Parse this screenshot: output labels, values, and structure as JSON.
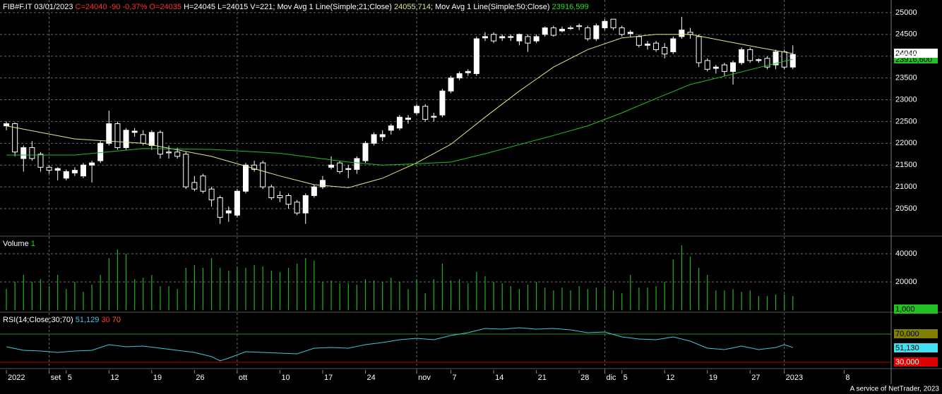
{
  "header": {
    "symbol": "FIB#F.IT 03/01/2023",
    "quote": "C=24040 -90 -0,37% O=24035",
    "stats": "H=24045 L=24015 V=221; Mov Avg 1 Line(Simple;21;Close)",
    "ma21_value": "24055,714",
    "ma50_name": "; Mov Avg 1 Line(Simple;50;Close)",
    "ma50_value": "23916,599",
    "volume_name": "Volume",
    "volume_period": "1",
    "rsi_name": "RSI(14;Close;30;70)",
    "rsi_value": "51,129",
    "rsi_low": "30",
    "rsi_high": "70"
  },
  "badges": {
    "last_price": "24040",
    "ma50": "23916,600",
    "volume": "1,000",
    "rsi": "51,130"
  },
  "footer": "A service of NetTrader, 2023",
  "chart_data": [
    {
      "type": "candlestick",
      "categories": [
        "2022",
        null,
        null,
        null,
        null,
        "set",
        null,
        "5",
        null,
        null,
        null,
        null,
        "12",
        null,
        null,
        null,
        null,
        "19",
        null,
        null,
        null,
        null,
        "26",
        null,
        null,
        null,
        null,
        "ott",
        null,
        null,
        null,
        null,
        "10",
        null,
        null,
        null,
        null,
        "17",
        null,
        null,
        null,
        null,
        "24",
        null,
        null,
        null,
        null,
        null,
        "nov",
        null,
        null,
        null,
        "7",
        null,
        null,
        null,
        null,
        "14",
        null,
        null,
        null,
        null,
        "21",
        null,
        null,
        null,
        null,
        "28",
        null,
        null,
        "dic",
        null,
        "5",
        null,
        null,
        null,
        null,
        "12",
        null,
        null,
        null,
        null,
        "19",
        null,
        null,
        null,
        null,
        "27",
        null,
        null,
        null,
        "2023",
        null,
        null,
        null,
        null,
        null,
        null,
        "8",
        null,
        null,
        null,
        null,
        null
      ],
      "month_starts": [
        5,
        27,
        48,
        70,
        91
      ],
      "open": [
        22400,
        22450,
        21650,
        21900,
        21750,
        21450,
        21380,
        21200,
        21320,
        21250,
        21500,
        21600,
        22000,
        22450,
        21900,
        22250,
        22200,
        21950,
        22250,
        21800,
        21800,
        21750,
        21100,
        21250,
        20950,
        20750,
        20400,
        20350,
        20900,
        21500,
        21550,
        21000,
        20800,
        20800,
        20650,
        20400,
        20800,
        21000,
        21450,
        21550,
        21400,
        21400,
        21600,
        22000,
        22150,
        22300,
        22350,
        22550,
        22700,
        22850,
        22600,
        22650,
        23200,
        23500,
        23620,
        23600,
        24420,
        24500,
        24420,
        24430,
        24350,
        24450,
        24350,
        24500,
        24650,
        24580,
        24650,
        24700,
        24650,
        24400,
        24650,
        24850,
        24650,
        24520,
        24450,
        24250,
        24300,
        24200,
        24100,
        24450,
        24550,
        24450,
        23900,
        23720,
        23800,
        23650,
        23850,
        24150,
        23900,
        23950,
        23800,
        24100,
        23750,
        null,
        null,
        null,
        null,
        null,
        null,
        null,
        null,
        null,
        null,
        null
      ],
      "high": [
        22500,
        22480,
        21950,
        22050,
        21800,
        21500,
        21450,
        21400,
        21450,
        21550,
        21600,
        22050,
        22750,
        22500,
        22350,
        22350,
        22300,
        22300,
        22300,
        21950,
        21900,
        21800,
        21250,
        21300,
        21000,
        20800,
        20550,
        20950,
        21550,
        21600,
        21600,
        21050,
        20900,
        20850,
        20700,
        20850,
        21050,
        21250,
        21700,
        21600,
        21500,
        21700,
        22050,
        22250,
        22300,
        22450,
        22650,
        22650,
        22900,
        22900,
        22700,
        23250,
        23550,
        23650,
        23700,
        24450,
        24550,
        24550,
        24500,
        24500,
        24520,
        24500,
        24500,
        24680,
        24700,
        24680,
        24700,
        24750,
        24700,
        24750,
        24850,
        24850,
        24700,
        24600,
        24500,
        24350,
        24350,
        24300,
        24450,
        24900,
        24650,
        24500,
        23950,
        23800,
        23850,
        23900,
        24200,
        24200,
        23950,
        24000,
        24150,
        24150,
        24250,
        null,
        null,
        null,
        null,
        null,
        null,
        null,
        null,
        null,
        null,
        null
      ],
      "low": [
        22300,
        21700,
        21350,
        21600,
        21350,
        21300,
        21150,
        21150,
        21250,
        21200,
        21100,
        21550,
        21950,
        21850,
        21850,
        22150,
        21950,
        21850,
        21650,
        21650,
        21650,
        20950,
        20900,
        20850,
        20550,
        20150,
        20200,
        20300,
        20850,
        21350,
        20950,
        20700,
        20650,
        20500,
        20350,
        20150,
        20750,
        20950,
        21400,
        21300,
        21200,
        21300,
        21550,
        21950,
        22050,
        22200,
        22300,
        22450,
        22650,
        22500,
        22500,
        22600,
        23150,
        23450,
        23550,
        23550,
        24350,
        24300,
        24350,
        24350,
        24250,
        24100,
        24300,
        24450,
        24450,
        24550,
        24600,
        24600,
        24350,
        24350,
        24600,
        24600,
        24450,
        24450,
        24200,
        24150,
        24100,
        23950,
        24050,
        24400,
        24400,
        23750,
        23650,
        23600,
        23550,
        23350,
        23800,
        23850,
        23850,
        23700,
        23700,
        23700,
        23700,
        null,
        null,
        null,
        null,
        null,
        null,
        null,
        null,
        null,
        null,
        null
      ],
      "close": [
        22450,
        21800,
        21900,
        21650,
        21450,
        21380,
        21420,
        21350,
        21380,
        21500,
        21550,
        22000,
        22450,
        21900,
        22300,
        22280,
        22000,
        22250,
        21750,
        21780,
        21700,
        21000,
        20950,
        20900,
        20700,
        20300,
        20450,
        20900,
        21500,
        21400,
        21000,
        20750,
        20750,
        20600,
        20400,
        20800,
        21000,
        21150,
        21500,
        21350,
        21420,
        21650,
        22000,
        22200,
        22200,
        22400,
        22600,
        22580,
        22850,
        22550,
        22620,
        23200,
        23500,
        23600,
        23650,
        24400,
        24450,
        24350,
        24450,
        24450,
        24500,
        24300,
        24450,
        24650,
        24480,
        24620,
        24650,
        24680,
        24400,
        24700,
        24800,
        24650,
        24500,
        24550,
        24250,
        24280,
        24150,
        24050,
        24400,
        24600,
        24500,
        23850,
        23700,
        23750,
        23650,
        23850,
        24150,
        23900,
        23920,
        23750,
        24100,
        23750,
        24040,
        null,
        null,
        null,
        null,
        null,
        null,
        null,
        null,
        null,
        null,
        null
      ],
      "up_color": "#ffffff",
      "down_color": "#000000",
      "series": [
        {
          "name": "Mov Avg 1 Line(Simple;21;Close)",
          "color": "#e6e68c",
          "x": [
            0,
            8,
            16,
            24,
            32,
            36,
            40,
            44,
            48,
            52,
            56,
            60,
            64,
            68,
            72,
            76,
            80,
            84,
            88,
            92
          ],
          "values": [
            22400,
            22100,
            22000,
            21700,
            21250,
            21050,
            20980,
            21200,
            21550,
            21980,
            22600,
            23200,
            23750,
            24150,
            24420,
            24500,
            24500,
            24350,
            24200,
            24060
          ]
        },
        {
          "name": "Mov Avg 1 Line(Simple;50;Close)",
          "color": "#22c022",
          "x": [
            0,
            8,
            16,
            24,
            32,
            40,
            44,
            48,
            52,
            56,
            60,
            64,
            68,
            72,
            76,
            80,
            84,
            88,
            92
          ],
          "values": [
            21730,
            21730,
            21880,
            21860,
            21770,
            21570,
            21500,
            21530,
            21570,
            21760,
            21970,
            22180,
            22400,
            22700,
            23030,
            23350,
            23540,
            23740,
            23930
          ]
        }
      ],
      "ylim": [
        19950,
        25290
      ],
      "yticks": [
        20500,
        21000,
        21500,
        22000,
        22500,
        23000,
        23500,
        24000,
        24500,
        25000
      ],
      "grid": true
    },
    {
      "type": "volume",
      "color": "#22b022",
      "values": [
        15000,
        20000,
        25000,
        20000,
        22000,
        17000,
        25000,
        15000,
        20000,
        13000,
        18000,
        25000,
        37000,
        43000,
        40000,
        22000,
        23000,
        25000,
        17000,
        17000,
        15000,
        30000,
        32000,
        30000,
        37000,
        30000,
        28000,
        31000,
        30000,
        32000,
        31000,
        28000,
        27000,
        30000,
        33000,
        37000,
        35000,
        20000,
        21000,
        19000,
        19000,
        18000,
        22000,
        21000,
        20000,
        23000,
        20000,
        15000,
        22000,
        12000,
        22000,
        33000,
        21000,
        22000,
        19000,
        27000,
        24000,
        20000,
        19000,
        17000,
        15000,
        18000,
        20000,
        16000,
        14000,
        16000,
        14000,
        17000,
        15000,
        16000,
        17000,
        14000,
        12000,
        25000,
        16000,
        16000,
        17000,
        20000,
        36000,
        46000,
        38000,
        30000,
        25000,
        14000,
        14000,
        15000,
        13000,
        14000,
        10000,
        10000,
        11000,
        11000,
        10000,
        null,
        null,
        null,
        null,
        null,
        null,
        null,
        null,
        null,
        null,
        null
      ],
      "ylim": [
        0,
        50000
      ],
      "yticks": [
        20000,
        40000
      ],
      "grid": true
    },
    {
      "type": "rsi",
      "color": "#40c8e0",
      "x": [
        0,
        2,
        4,
        6,
        8,
        10,
        12,
        14,
        16,
        18,
        20,
        22,
        24,
        25,
        26,
        28,
        30,
        32,
        34,
        36,
        38,
        40,
        42,
        44,
        46,
        48,
        50,
        52,
        54,
        56,
        58,
        60,
        62,
        64,
        66,
        68,
        70,
        72,
        74,
        76,
        78,
        80,
        82,
        84,
        86,
        88,
        90,
        91,
        92
      ],
      "values": [
        52,
        47,
        46,
        44,
        46,
        47,
        55,
        52,
        53,
        50,
        47,
        44,
        38,
        32,
        36,
        45,
        44,
        43,
        42,
        50,
        51,
        50,
        55,
        58,
        62,
        64,
        62,
        68,
        72,
        78,
        77,
        79,
        77,
        78,
        76,
        72,
        73,
        66,
        63,
        62,
        66,
        60,
        50,
        48,
        53,
        48,
        51,
        55,
        51
      ],
      "levels": [
        {
          "value": 70,
          "label": "70,000",
          "color": "#2a8a2a",
          "badge": "#808000"
        },
        {
          "value": 30,
          "label": "30,000",
          "color": "#c00000",
          "badge": "#e00000"
        }
      ],
      "ylim": [
        22,
        96
      ]
    }
  ]
}
